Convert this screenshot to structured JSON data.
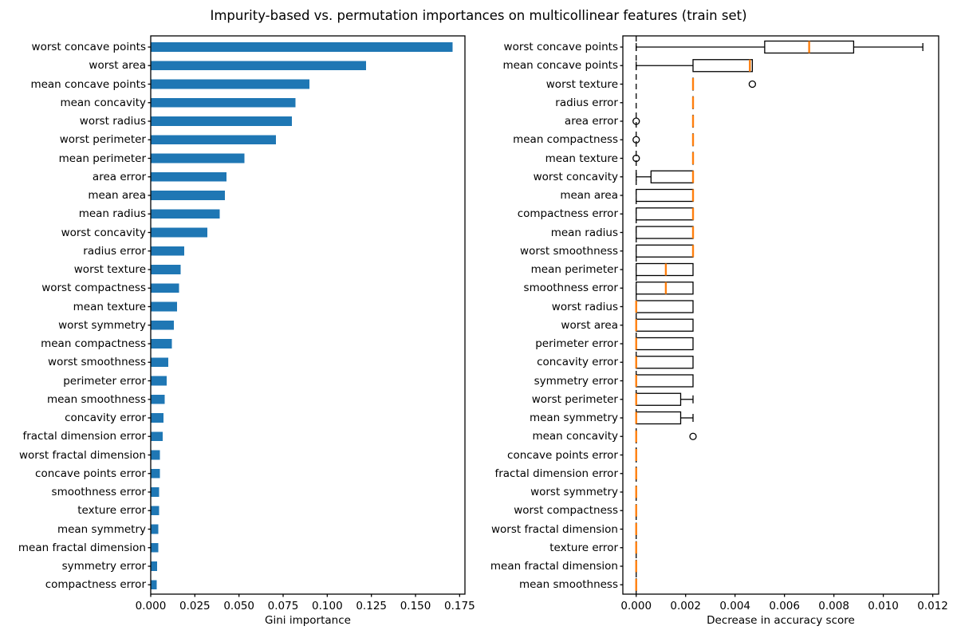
{
  "title": "Impurity-based vs. permutation importances on multicollinear features (train set)",
  "colors": {
    "bar": "#1f77b4",
    "median": "#ff7f0e",
    "box_edge": "#000000",
    "text": "#000000",
    "background": "#ffffff"
  },
  "chart_data": [
    {
      "type": "bar",
      "orientation": "horizontal",
      "title": "",
      "xlabel": "Gini importance",
      "ylabel": "",
      "xlim": [
        0,
        0.178
      ],
      "grid": false,
      "xtick_values": [
        0.0,
        0.025,
        0.05,
        0.075,
        0.1,
        0.125,
        0.15,
        0.175
      ],
      "xtick_labels": [
        "0.000",
        "0.025",
        "0.050",
        "0.075",
        "0.100",
        "0.125",
        "0.150",
        "0.175"
      ],
      "categories": [
        "worst concave points",
        "worst area",
        "mean concave points",
        "mean concavity",
        "worst radius",
        "worst perimeter",
        "mean perimeter",
        "area error",
        "mean area",
        "mean radius",
        "worst concavity",
        "radius error",
        "worst texture",
        "worst compactness",
        "mean texture",
        "worst symmetry",
        "mean compactness",
        "worst smoothness",
        "perimeter error",
        "mean smoothness",
        "concavity error",
        "fractal dimension error",
        "worst fractal dimension",
        "concave points error",
        "smoothness error",
        "texture error",
        "mean symmetry",
        "mean fractal dimension",
        "symmetry error",
        "compactness error"
      ],
      "values": [
        0.171,
        0.122,
        0.09,
        0.082,
        0.08,
        0.071,
        0.053,
        0.043,
        0.042,
        0.039,
        0.032,
        0.019,
        0.017,
        0.016,
        0.015,
        0.013,
        0.012,
        0.01,
        0.009,
        0.008,
        0.0072,
        0.0067,
        0.0053,
        0.0051,
        0.0048,
        0.0047,
        0.0044,
        0.0042,
        0.0037,
        0.0034
      ]
    },
    {
      "type": "boxplot",
      "orientation": "horizontal",
      "title": "",
      "xlabel": "Decrease in accuracy score",
      "ylabel": "",
      "xlim": [
        -0.00054,
        0.01224
      ],
      "grid": false,
      "zero_line": 0,
      "xtick_values": [
        0.0,
        0.002,
        0.004,
        0.006,
        0.008,
        0.01,
        0.012
      ],
      "xtick_labels": [
        "0.000",
        "0.002",
        "0.004",
        "0.006",
        "0.008",
        "0.010",
        "0.012"
      ],
      "categories": [
        "worst concave points",
        "mean concave points",
        "worst texture",
        "radius error",
        "area error",
        "mean compactness",
        "mean texture",
        "worst concavity",
        "mean area",
        "compactness error",
        "mean radius",
        "worst smoothness",
        "mean perimeter",
        "smoothness error",
        "worst radius",
        "worst area",
        "perimeter error",
        "concavity error",
        "symmetry error",
        "worst perimeter",
        "mean symmetry",
        "mean concavity",
        "concave points error",
        "fractal dimension error",
        "worst symmetry",
        "worst compactness",
        "worst fractal dimension",
        "texture error",
        "mean fractal dimension",
        "mean smoothness"
      ],
      "boxes": [
        {
          "label": "worst concave points",
          "whislo": 0,
          "q1": 0.0052,
          "med": 0.007,
          "q3": 0.0088,
          "whishi": 0.0116,
          "fliers": []
        },
        {
          "label": "mean concave points",
          "whislo": 0,
          "q1": 0.0023,
          "med": 0.0046,
          "q3": 0.0047,
          "whishi": 0.0047,
          "fliers": []
        },
        {
          "label": "worst texture",
          "whislo": 0.0023,
          "q1": 0.0023,
          "med": 0.0023,
          "q3": 0.0023,
          "whishi": 0.0023,
          "fliers": [
            0.0047
          ]
        },
        {
          "label": "radius error",
          "whislo": 0.0023,
          "q1": 0.0023,
          "med": 0.0023,
          "q3": 0.0023,
          "whishi": 0.0023,
          "fliers": []
        },
        {
          "label": "area error",
          "whislo": 0.0023,
          "q1": 0.0023,
          "med": 0.0023,
          "q3": 0.0023,
          "whishi": 0.0023,
          "fliers": [
            0
          ]
        },
        {
          "label": "mean compactness",
          "whislo": 0.0023,
          "q1": 0.0023,
          "med": 0.0023,
          "q3": 0.0023,
          "whishi": 0.0023,
          "fliers": [
            0
          ]
        },
        {
          "label": "mean texture",
          "whislo": 0.0023,
          "q1": 0.0023,
          "med": 0.0023,
          "q3": 0.0023,
          "whishi": 0.0023,
          "fliers": [
            0
          ]
        },
        {
          "label": "worst concavity",
          "whislo": 0,
          "q1": 0.0006,
          "med": 0.0023,
          "q3": 0.0023,
          "whishi": 0.0023,
          "fliers": []
        },
        {
          "label": "mean area",
          "whislo": 0,
          "q1": 0,
          "med": 0.0023,
          "q3": 0.0023,
          "whishi": 0.0023,
          "fliers": []
        },
        {
          "label": "compactness error",
          "whislo": 0,
          "q1": 0,
          "med": 0.0023,
          "q3": 0.0023,
          "whishi": 0.0023,
          "fliers": []
        },
        {
          "label": "mean radius",
          "whislo": 0,
          "q1": 0,
          "med": 0.0023,
          "q3": 0.0023,
          "whishi": 0.0023,
          "fliers": []
        },
        {
          "label": "worst smoothness",
          "whislo": 0,
          "q1": 0,
          "med": 0.0023,
          "q3": 0.0023,
          "whishi": 0.0023,
          "fliers": []
        },
        {
          "label": "mean perimeter",
          "whislo": 0,
          "q1": 0,
          "med": 0.0012,
          "q3": 0.0023,
          "whishi": 0.0023,
          "fliers": []
        },
        {
          "label": "smoothness error",
          "whislo": 0,
          "q1": 0,
          "med": 0.0012,
          "q3": 0.0023,
          "whishi": 0.0023,
          "fliers": []
        },
        {
          "label": "worst radius",
          "whislo": 0,
          "q1": 0,
          "med": 0,
          "q3": 0.0023,
          "whishi": 0.0023,
          "fliers": []
        },
        {
          "label": "worst area",
          "whislo": 0,
          "q1": 0,
          "med": 0,
          "q3": 0.0023,
          "whishi": 0.0023,
          "fliers": []
        },
        {
          "label": "perimeter error",
          "whislo": 0,
          "q1": 0,
          "med": 0,
          "q3": 0.0023,
          "whishi": 0.0023,
          "fliers": []
        },
        {
          "label": "concavity error",
          "whislo": 0,
          "q1": 0,
          "med": 0,
          "q3": 0.0023,
          "whishi": 0.0023,
          "fliers": []
        },
        {
          "label": "symmetry error",
          "whislo": 0,
          "q1": 0,
          "med": 0,
          "q3": 0.0023,
          "whishi": 0.0023,
          "fliers": []
        },
        {
          "label": "worst perimeter",
          "whislo": 0,
          "q1": 0,
          "med": 0,
          "q3": 0.0018,
          "whishi": 0.0023,
          "fliers": []
        },
        {
          "label": "mean symmetry",
          "whislo": 0,
          "q1": 0,
          "med": 0,
          "q3": 0.0018,
          "whishi": 0.0023,
          "fliers": []
        },
        {
          "label": "mean concavity",
          "whislo": 0,
          "q1": 0,
          "med": 0,
          "q3": 0,
          "whishi": 0,
          "fliers": [
            0.0023
          ]
        },
        {
          "label": "concave points error",
          "whislo": 0,
          "q1": 0,
          "med": 0,
          "q3": 0,
          "whishi": 0,
          "fliers": []
        },
        {
          "label": "fractal dimension error",
          "whislo": 0,
          "q1": 0,
          "med": 0,
          "q3": 0,
          "whishi": 0,
          "fliers": []
        },
        {
          "label": "worst symmetry",
          "whislo": 0,
          "q1": 0,
          "med": 0,
          "q3": 0,
          "whishi": 0,
          "fliers": []
        },
        {
          "label": "worst compactness",
          "whislo": 0,
          "q1": 0,
          "med": 0,
          "q3": 0,
          "whishi": 0,
          "fliers": []
        },
        {
          "label": "worst fractal dimension",
          "whislo": 0,
          "q1": 0,
          "med": 0,
          "q3": 0,
          "whishi": 0,
          "fliers": []
        },
        {
          "label": "texture error",
          "whislo": 0,
          "q1": 0,
          "med": 0,
          "q3": 0,
          "whishi": 0,
          "fliers": []
        },
        {
          "label": "mean fractal dimension",
          "whislo": 0,
          "q1": 0,
          "med": 0,
          "q3": 0,
          "whishi": 0,
          "fliers": []
        },
        {
          "label": "mean smoothness",
          "whislo": 0,
          "q1": 0,
          "med": 0,
          "q3": 0,
          "whishi": 0,
          "fliers": []
        }
      ]
    }
  ]
}
